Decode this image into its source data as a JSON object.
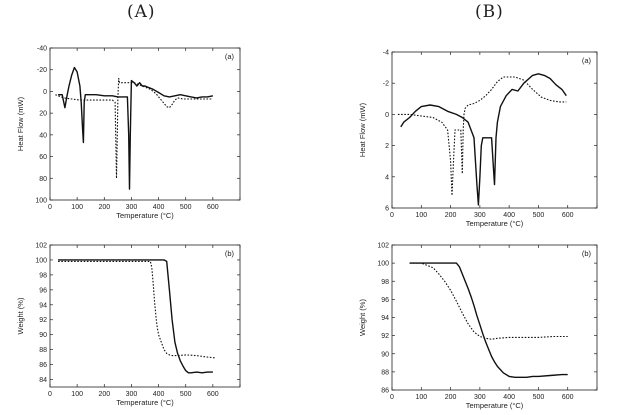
{
  "headers": {
    "left": "(A)",
    "right": "(B)"
  },
  "chart_data": [
    {
      "id": "A-a",
      "type": "line",
      "panel_label": "(a)",
      "xlabel": "Temperature (°C)",
      "ylabel": "Heat Flow (mW)",
      "xlim": [
        0,
        700
      ],
      "ylim": [
        -40,
        100
      ],
      "y_inverted": true,
      "xticks": [
        0,
        100,
        200,
        300,
        400,
        500,
        600,
        700
      ],
      "yticks": [
        -40,
        -20,
        0,
        20,
        40,
        60,
        80,
        100
      ],
      "series": [
        {
          "style": "solid",
          "x": [
            30,
            45,
            55,
            62,
            70,
            80,
            90,
            100,
            110,
            115,
            120,
            123,
            126,
            130,
            140,
            150,
            170,
            200,
            230,
            250,
            270,
            285,
            290,
            293,
            296,
            300,
            310,
            320,
            330,
            340,
            350,
            360,
            380,
            400,
            420,
            440,
            460,
            480,
            500,
            520,
            540,
            560,
            580,
            600
          ],
          "y": [
            3,
            3,
            15,
            5,
            -5,
            -15,
            -22,
            -18,
            -5,
            10,
            35,
            47,
            10,
            3,
            3,
            3,
            3,
            4,
            4,
            5,
            5,
            5,
            40,
            90,
            40,
            -10,
            -8,
            -5,
            -8,
            -5,
            -5,
            -4,
            -2,
            1,
            4,
            5,
            4,
            3,
            4,
            5,
            6,
            5,
            5,
            4
          ]
        },
        {
          "style": "dotted",
          "x": [
            20,
            50,
            80,
            110,
            140,
            170,
            200,
            230,
            240,
            245,
            248,
            250,
            253,
            256,
            260,
            270,
            290,
            310,
            330,
            350,
            370,
            390,
            410,
            430,
            440,
            450,
            460,
            470,
            490,
            510,
            530,
            560,
            600
          ],
          "y": [
            3,
            6,
            7,
            8,
            8,
            8,
            8,
            8,
            10,
            80,
            40,
            5,
            -12,
            -8,
            -8,
            -8,
            -8,
            -8,
            -6,
            -4,
            -2,
            2,
            8,
            14,
            15,
            12,
            8,
            6,
            7,
            7,
            7,
            7,
            7
          ]
        }
      ]
    },
    {
      "id": "B-a",
      "type": "line",
      "panel_label": "(a)",
      "xlabel": "Temperature (°C)",
      "ylabel": "Heat Flow (mW)",
      "xlim": [
        0,
        700
      ],
      "ylim": [
        -4,
        6
      ],
      "y_inverted": true,
      "xticks": [
        0,
        100,
        200,
        300,
        400,
        500,
        600,
        700
      ],
      "yticks": [
        -4,
        -2,
        0,
        2,
        4,
        6
      ],
      "series": [
        {
          "style": "solid",
          "x": [
            30,
            40,
            60,
            80,
            100,
            130,
            160,
            190,
            220,
            240,
            260,
            280,
            290,
            295,
            300,
            305,
            310,
            320,
            330,
            340,
            345,
            350,
            355,
            360,
            370,
            390,
            410,
            430,
            450,
            480,
            500,
            520,
            540,
            560,
            580,
            595
          ],
          "y": [
            0.8,
            0.5,
            0.2,
            -0.2,
            -0.5,
            -0.6,
            -0.5,
            -0.2,
            0,
            0.2,
            0.5,
            1.5,
            4.5,
            5.8,
            4,
            2,
            1.5,
            1.5,
            1.5,
            1.5,
            3,
            4.5,
            1.5,
            0.5,
            -0.5,
            -1.2,
            -1.6,
            -1.5,
            -2.0,
            -2.5,
            -2.6,
            -2.5,
            -2.3,
            -1.9,
            -1.6,
            -1.2
          ]
        },
        {
          "style": "dotted",
          "x": [
            20,
            60,
            100,
            140,
            170,
            190,
            200,
            205,
            210,
            215,
            225,
            235,
            240,
            243,
            246,
            250,
            260,
            280,
            300,
            320,
            340,
            360,
            380,
            400,
            420,
            450,
            480,
            510,
            540,
            570,
            595
          ],
          "y": [
            0,
            0,
            0.1,
            0.2,
            0.5,
            1,
            3,
            5.2,
            3,
            1,
            1,
            1,
            3.8,
            1,
            0,
            -0.4,
            -0.6,
            -0.7,
            -0.9,
            -1.2,
            -1.6,
            -2.1,
            -2.4,
            -2.4,
            -2.4,
            -2.2,
            -1.6,
            -1.1,
            -0.9,
            -0.8,
            -0.8
          ]
        }
      ]
    },
    {
      "id": "A-b",
      "type": "line",
      "panel_label": "(b)",
      "xlabel": "Temperature (°C)",
      "ylabel": "Weight (%)",
      "xlim": [
        0,
        700
      ],
      "ylim": [
        83,
        102
      ],
      "y_inverted": false,
      "xticks": [
        0,
        100,
        200,
        300,
        400,
        500,
        600,
        700
      ],
      "yticks": [
        84,
        86,
        88,
        90,
        92,
        94,
        96,
        98,
        100,
        102
      ],
      "series": [
        {
          "style": "solid",
          "x": [
            30,
            100,
            200,
            300,
            380,
            410,
            420,
            430,
            440,
            450,
            460,
            470,
            480,
            490,
            500,
            510,
            520,
            540,
            560,
            580,
            600
          ],
          "y": [
            100,
            100,
            100,
            100,
            100,
            100,
            100,
            99.8,
            96,
            92,
            89,
            87.5,
            86.5,
            85.8,
            85.2,
            84.9,
            84.9,
            85,
            84.9,
            85,
            85
          ]
        },
        {
          "style": "dotted",
          "x": [
            30,
            100,
            200,
            300,
            350,
            370,
            375,
            380,
            385,
            390,
            395,
            400,
            410,
            420,
            430,
            440,
            450,
            470,
            500,
            540,
            580,
            610
          ],
          "y": [
            99.8,
            99.8,
            99.8,
            99.8,
            99.8,
            99.8,
            99,
            97,
            94.5,
            92.5,
            91,
            90,
            89,
            88,
            87.5,
            87.3,
            87.2,
            87.2,
            87.3,
            87.2,
            87,
            86.9
          ]
        }
      ]
    },
    {
      "id": "B-b",
      "type": "line",
      "panel_label": "(b)",
      "xlabel": "Temperature (°C)",
      "ylabel": "Weight (%)",
      "xlim": [
        0,
        700
      ],
      "ylim": [
        86,
        102
      ],
      "y_inverted": false,
      "xticks": [
        0,
        100,
        200,
        300,
        400,
        500,
        600,
        700
      ],
      "yticks": [
        86,
        88,
        90,
        92,
        94,
        96,
        98,
        100,
        102
      ],
      "series": [
        {
          "style": "solid",
          "x": [
            60,
            100,
            150,
            200,
            220,
            230,
            240,
            250,
            260,
            270,
            280,
            290,
            300,
            310,
            320,
            330,
            340,
            350,
            360,
            380,
            400,
            420,
            440,
            460,
            480,
            500,
            540,
            580,
            600
          ],
          "y": [
            100,
            100,
            100,
            100,
            100,
            99.6,
            98.8,
            98,
            97.2,
            96.3,
            95.3,
            94.2,
            93.2,
            92.2,
            91.3,
            90.5,
            89.7,
            89.1,
            88.6,
            87.9,
            87.5,
            87.4,
            87.4,
            87.4,
            87.5,
            87.5,
            87.6,
            87.7,
            87.7
          ]
        },
        {
          "style": "dotted",
          "x": [
            60,
            100,
            140,
            160,
            180,
            200,
            220,
            240,
            260,
            280,
            300,
            320,
            340,
            360,
            400,
            450,
            500,
            550,
            600
          ],
          "y": [
            100,
            100,
            99.5,
            98.8,
            98,
            97,
            95.8,
            94.5,
            93.3,
            92.4,
            91.9,
            91.7,
            91.6,
            91.7,
            91.8,
            91.8,
            91.8,
            91.9,
            91.9
          ]
        }
      ]
    }
  ]
}
